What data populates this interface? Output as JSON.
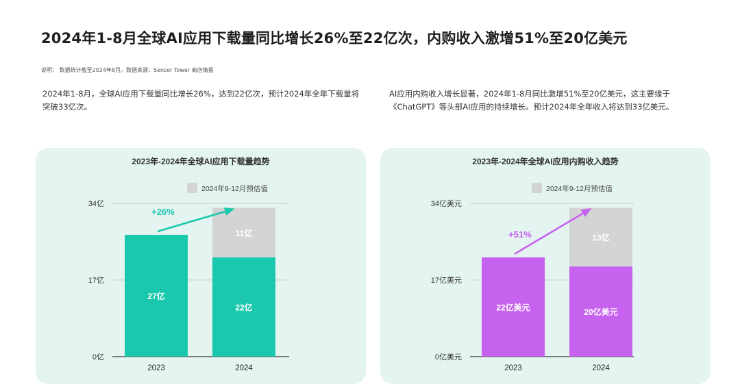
{
  "header": {
    "title": "2024年1-8月全球AI应用下载量同比增长26%至22亿次，内购收入激增51%至20亿美元",
    "note": "说明： 数据统计截至2024年8月。数据来源：Sensor Tower 商店情报"
  },
  "descriptions": {
    "left": "2024年1-8月，全球AI应用下载量同比增长26%，达到22亿次，预计2024年全年下载量将突破33亿次。",
    "right": "AI应用内购收入增长显著，2024年1-8月同比激增51%至20亿美元，这主要缘于《ChatGPT》等头部AI应用的持续增长。预计2024年全年收入将达到33亿美元。"
  },
  "colors": {
    "downloads": "#1ac8ad",
    "revenue": "#c662ee",
    "estimate": "#d4d4d4",
    "panel_bg": "#e4f4f1"
  },
  "chart_data": [
    {
      "type": "bar",
      "stacked": true,
      "title": "2023年-2024年全球AI应用下载量趋势",
      "categories": [
        "2023",
        "2024"
      ],
      "series": [
        {
          "values": [
            27,
            22
          ],
          "labels": [
            "27亿",
            "22亿"
          ]
        },
        {
          "name": "2024年9-12月预估值",
          "values": [
            0,
            11
          ],
          "labels": [
            "",
            "11亿"
          ]
        }
      ],
      "yticks": [
        0,
        17,
        34
      ],
      "ytick_labels": [
        "0亿",
        "17亿",
        "34亿"
      ],
      "ylim": [
        0,
        34
      ],
      "growth_label": "+26%",
      "legend": "top-right",
      "grid": false
    },
    {
      "type": "bar",
      "stacked": true,
      "title": "2023年-2024年全球AI应用内购收入趋势",
      "categories": [
        "2023",
        "2024"
      ],
      "series": [
        {
          "values": [
            22,
            20
          ],
          "labels": [
            "22亿美元",
            "20亿美元"
          ]
        },
        {
          "name": "2024年9-12月预估值",
          "values": [
            0,
            13
          ],
          "labels": [
            "",
            "13亿"
          ]
        }
      ],
      "yticks": [
        0,
        17,
        34
      ],
      "ytick_labels": [
        "0亿美元",
        "17亿美元",
        "34亿美元"
      ],
      "ylim": [
        0,
        34
      ],
      "growth_label": "+51%",
      "legend": "top-right",
      "grid": false
    }
  ]
}
